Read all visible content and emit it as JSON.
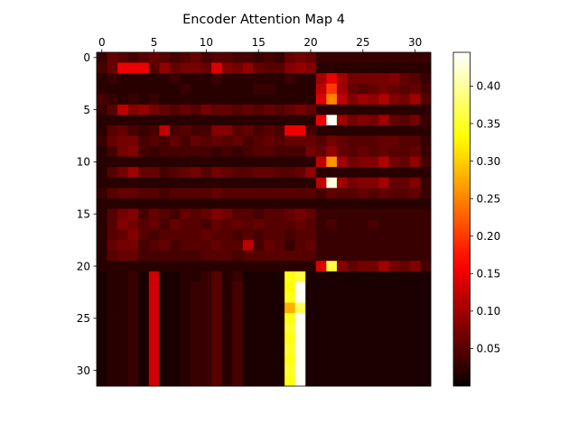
{
  "chart_data": {
    "type": "heatmap",
    "title": "Encoder Attention Map 4",
    "xlabel": "",
    "ylabel": "",
    "rows": 32,
    "cols": 32,
    "x_ticks": [
      0,
      5,
      10,
      15,
      20,
      25,
      30
    ],
    "x_tick_position": "top",
    "y_ticks": [
      0,
      5,
      10,
      15,
      20,
      25,
      30
    ],
    "colormap": "hot",
    "vmin": 0.0,
    "vmax": 0.445,
    "colorbar_ticks": [
      "0.05",
      "0.10",
      "0.15",
      "0.20",
      "0.25",
      "0.30",
      "0.35",
      "0.40"
    ],
    "colorbar_tick_values": [
      0.05,
      0.1,
      0.15,
      0.2,
      0.25,
      0.3,
      0.35,
      0.4
    ],
    "values": [
      [
        0.03,
        0.06,
        0.05,
        0.04,
        0.05,
        0.06,
        0.05,
        0.04,
        0.05,
        0.06,
        0.04,
        0.05,
        0.05,
        0.04,
        0.04,
        0.03,
        0.04,
        0.03,
        0.06,
        0.07,
        0.06,
        0.03,
        0.03,
        0.03,
        0.03,
        0.03,
        0.03,
        0.03,
        0.03,
        0.03,
        0.03,
        0.03
      ],
      [
        0.04,
        0.06,
        0.15,
        0.15,
        0.15,
        0.05,
        0.09,
        0.06,
        0.07,
        0.07,
        0.06,
        0.14,
        0.08,
        0.07,
        0.09,
        0.06,
        0.05,
        0.05,
        0.08,
        0.09,
        0.08,
        0.02,
        0.02,
        0.02,
        0.02,
        0.02,
        0.02,
        0.02,
        0.02,
        0.02,
        0.02,
        0.02
      ],
      [
        0.02,
        0.03,
        0.02,
        0.02,
        0.02,
        0.02,
        0.02,
        0.03,
        0.02,
        0.02,
        0.02,
        0.03,
        0.02,
        0.02,
        0.02,
        0.02,
        0.02,
        0.02,
        0.03,
        0.02,
        0.02,
        0.1,
        0.15,
        0.1,
        0.07,
        0.07,
        0.07,
        0.07,
        0.08,
        0.06,
        0.05,
        0.03
      ],
      [
        0.02,
        0.02,
        0.02,
        0.02,
        0.02,
        0.02,
        0.02,
        0.02,
        0.03,
        0.02,
        0.02,
        0.02,
        0.02,
        0.02,
        0.02,
        0.03,
        0.03,
        0.02,
        0.02,
        0.02,
        0.02,
        0.12,
        0.2,
        0.1,
        0.06,
        0.05,
        0.06,
        0.07,
        0.06,
        0.05,
        0.06,
        0.04
      ],
      [
        0.04,
        0.03,
        0.02,
        0.03,
        0.02,
        0.03,
        0.02,
        0.02,
        0.02,
        0.02,
        0.02,
        0.02,
        0.02,
        0.02,
        0.02,
        0.02,
        0.02,
        0.02,
        0.02,
        0.02,
        0.02,
        0.14,
        0.25,
        0.12,
        0.08,
        0.1,
        0.09,
        0.11,
        0.08,
        0.07,
        0.1,
        0.05
      ],
      [
        0.03,
        0.05,
        0.12,
        0.08,
        0.09,
        0.07,
        0.06,
        0.05,
        0.06,
        0.05,
        0.07,
        0.06,
        0.06,
        0.05,
        0.06,
        0.05,
        0.06,
        0.05,
        0.06,
        0.07,
        0.06,
        0.02,
        0.02,
        0.02,
        0.02,
        0.02,
        0.02,
        0.02,
        0.02,
        0.02,
        0.02,
        0.02
      ],
      [
        0.02,
        0.02,
        0.02,
        0.02,
        0.02,
        0.02,
        0.02,
        0.02,
        0.02,
        0.02,
        0.02,
        0.02,
        0.02,
        0.02,
        0.02,
        0.02,
        0.02,
        0.02,
        0.02,
        0.02,
        0.02,
        0.15,
        0.44,
        0.1,
        0.07,
        0.08,
        0.07,
        0.1,
        0.06,
        0.05,
        0.07,
        0.03
      ],
      [
        0.02,
        0.05,
        0.06,
        0.04,
        0.03,
        0.04,
        0.12,
        0.04,
        0.05,
        0.04,
        0.04,
        0.08,
        0.08,
        0.05,
        0.06,
        0.04,
        0.05,
        0.04,
        0.15,
        0.15,
        0.04,
        0.02,
        0.02,
        0.02,
        0.02,
        0.02,
        0.02,
        0.02,
        0.02,
        0.02,
        0.02,
        0.02
      ],
      [
        0.03,
        0.06,
        0.07,
        0.07,
        0.04,
        0.05,
        0.04,
        0.06,
        0.04,
        0.06,
        0.05,
        0.06,
        0.05,
        0.06,
        0.04,
        0.05,
        0.06,
        0.05,
        0.06,
        0.06,
        0.06,
        0.05,
        0.07,
        0.06,
        0.05,
        0.05,
        0.05,
        0.06,
        0.06,
        0.05,
        0.05,
        0.03
      ],
      [
        0.02,
        0.04,
        0.07,
        0.08,
        0.04,
        0.03,
        0.04,
        0.04,
        0.04,
        0.04,
        0.04,
        0.03,
        0.04,
        0.03,
        0.04,
        0.05,
        0.05,
        0.04,
        0.04,
        0.04,
        0.07,
        0.06,
        0.09,
        0.06,
        0.05,
        0.06,
        0.05,
        0.06,
        0.05,
        0.05,
        0.06,
        0.03
      ],
      [
        0.02,
        0.02,
        0.02,
        0.02,
        0.02,
        0.02,
        0.02,
        0.02,
        0.02,
        0.02,
        0.02,
        0.02,
        0.02,
        0.02,
        0.02,
        0.02,
        0.02,
        0.02,
        0.02,
        0.02,
        0.02,
        0.12,
        0.26,
        0.1,
        0.07,
        0.08,
        0.08,
        0.11,
        0.07,
        0.06,
        0.09,
        0.04
      ],
      [
        0.02,
        0.05,
        0.07,
        0.1,
        0.06,
        0.06,
        0.04,
        0.05,
        0.06,
        0.07,
        0.05,
        0.07,
        0.06,
        0.05,
        0.05,
        0.06,
        0.06,
        0.05,
        0.05,
        0.06,
        0.09,
        0.02,
        0.02,
        0.02,
        0.02,
        0.02,
        0.02,
        0.02,
        0.02,
        0.02,
        0.02,
        0.02
      ],
      [
        0.02,
        0.02,
        0.02,
        0.02,
        0.02,
        0.02,
        0.02,
        0.02,
        0.02,
        0.02,
        0.02,
        0.02,
        0.02,
        0.02,
        0.02,
        0.02,
        0.02,
        0.02,
        0.02,
        0.02,
        0.02,
        0.12,
        0.43,
        0.1,
        0.07,
        0.08,
        0.08,
        0.1,
        0.06,
        0.06,
        0.08,
        0.03
      ],
      [
        0.03,
        0.05,
        0.06,
        0.06,
        0.05,
        0.05,
        0.04,
        0.05,
        0.05,
        0.05,
        0.05,
        0.06,
        0.05,
        0.05,
        0.05,
        0.05,
        0.05,
        0.05,
        0.05,
        0.05,
        0.05,
        0.04,
        0.06,
        0.05,
        0.05,
        0.06,
        0.05,
        0.06,
        0.05,
        0.05,
        0.06,
        0.03
      ],
      [
        0.02,
        0.02,
        0.02,
        0.02,
        0.02,
        0.02,
        0.02,
        0.02,
        0.02,
        0.02,
        0.02,
        0.02,
        0.02,
        0.02,
        0.02,
        0.02,
        0.02,
        0.02,
        0.02,
        0.02,
        0.02,
        0.02,
        0.02,
        0.02,
        0.02,
        0.02,
        0.02,
        0.02,
        0.02,
        0.02,
        0.02,
        0.02
      ],
      [
        0.02,
        0.05,
        0.07,
        0.08,
        0.04,
        0.06,
        0.05,
        0.04,
        0.06,
        0.05,
        0.06,
        0.08,
        0.07,
        0.05,
        0.05,
        0.04,
        0.05,
        0.05,
        0.06,
        0.07,
        0.06,
        0.03,
        0.03,
        0.03,
        0.03,
        0.03,
        0.03,
        0.03,
        0.03,
        0.03,
        0.03,
        0.03
      ],
      [
        0.02,
        0.05,
        0.08,
        0.07,
        0.05,
        0.06,
        0.04,
        0.06,
        0.05,
        0.05,
        0.04,
        0.06,
        0.05,
        0.06,
        0.05,
        0.06,
        0.05,
        0.05,
        0.05,
        0.06,
        0.05,
        0.03,
        0.04,
        0.03,
        0.03,
        0.03,
        0.04,
        0.03,
        0.03,
        0.03,
        0.03,
        0.03
      ],
      [
        0.02,
        0.05,
        0.06,
        0.08,
        0.05,
        0.04,
        0.05,
        0.05,
        0.05,
        0.05,
        0.06,
        0.05,
        0.05,
        0.04,
        0.05,
        0.04,
        0.05,
        0.05,
        0.04,
        0.05,
        0.05,
        0.03,
        0.03,
        0.03,
        0.03,
        0.03,
        0.03,
        0.03,
        0.03,
        0.03,
        0.03,
        0.03
      ],
      [
        0.02,
        0.06,
        0.07,
        0.07,
        0.04,
        0.05,
        0.06,
        0.04,
        0.05,
        0.05,
        0.05,
        0.06,
        0.05,
        0.05,
        0.12,
        0.04,
        0.06,
        0.05,
        0.03,
        0.05,
        0.06,
        0.03,
        0.03,
        0.03,
        0.03,
        0.03,
        0.03,
        0.03,
        0.03,
        0.03,
        0.03,
        0.03
      ],
      [
        0.02,
        0.05,
        0.06,
        0.06,
        0.04,
        0.04,
        0.04,
        0.04,
        0.04,
        0.04,
        0.05,
        0.05,
        0.05,
        0.04,
        0.05,
        0.05,
        0.05,
        0.05,
        0.05,
        0.05,
        0.05,
        0.03,
        0.03,
        0.03,
        0.03,
        0.03,
        0.03,
        0.03,
        0.03,
        0.03,
        0.03,
        0.03
      ],
      [
        0.02,
        0.02,
        0.02,
        0.02,
        0.02,
        0.02,
        0.02,
        0.02,
        0.02,
        0.02,
        0.02,
        0.02,
        0.02,
        0.02,
        0.02,
        0.02,
        0.02,
        0.02,
        0.02,
        0.02,
        0.02,
        0.14,
        0.36,
        0.08,
        0.06,
        0.07,
        0.07,
        0.1,
        0.07,
        0.06,
        0.08,
        0.04
      ],
      [
        0.01,
        0.02,
        0.02,
        0.03,
        0.01,
        0.13,
        0.01,
        0.01,
        0.02,
        0.02,
        0.03,
        0.05,
        0.02,
        0.03,
        0.01,
        0.01,
        0.01,
        0.01,
        0.34,
        0.36,
        0.01,
        0.01,
        0.01,
        0.01,
        0.01,
        0.01,
        0.01,
        0.01,
        0.01,
        0.01,
        0.01,
        0.01
      ],
      [
        0.01,
        0.02,
        0.02,
        0.03,
        0.01,
        0.13,
        0.01,
        0.01,
        0.02,
        0.03,
        0.03,
        0.05,
        0.02,
        0.04,
        0.01,
        0.01,
        0.01,
        0.01,
        0.33,
        0.44,
        0.01,
        0.01,
        0.01,
        0.01,
        0.01,
        0.01,
        0.01,
        0.01,
        0.01,
        0.01,
        0.01,
        0.01
      ],
      [
        0.01,
        0.02,
        0.02,
        0.03,
        0.01,
        0.13,
        0.01,
        0.01,
        0.02,
        0.03,
        0.03,
        0.05,
        0.02,
        0.04,
        0.01,
        0.01,
        0.01,
        0.01,
        0.34,
        0.44,
        0.01,
        0.01,
        0.01,
        0.01,
        0.01,
        0.01,
        0.01,
        0.01,
        0.01,
        0.01,
        0.01,
        0.01
      ],
      [
        0.01,
        0.02,
        0.02,
        0.03,
        0.01,
        0.13,
        0.01,
        0.01,
        0.02,
        0.03,
        0.03,
        0.05,
        0.02,
        0.04,
        0.01,
        0.01,
        0.01,
        0.01,
        0.28,
        0.37,
        0.01,
        0.01,
        0.01,
        0.01,
        0.01,
        0.01,
        0.01,
        0.01,
        0.01,
        0.01,
        0.01,
        0.01
      ],
      [
        0.01,
        0.02,
        0.02,
        0.03,
        0.01,
        0.13,
        0.01,
        0.01,
        0.02,
        0.03,
        0.03,
        0.05,
        0.02,
        0.04,
        0.01,
        0.01,
        0.01,
        0.01,
        0.34,
        0.44,
        0.01,
        0.01,
        0.01,
        0.01,
        0.01,
        0.01,
        0.01,
        0.01,
        0.01,
        0.01,
        0.01,
        0.01
      ],
      [
        0.01,
        0.02,
        0.02,
        0.03,
        0.01,
        0.13,
        0.01,
        0.01,
        0.02,
        0.03,
        0.03,
        0.05,
        0.02,
        0.04,
        0.01,
        0.01,
        0.01,
        0.01,
        0.35,
        0.44,
        0.01,
        0.01,
        0.01,
        0.01,
        0.01,
        0.01,
        0.01,
        0.01,
        0.01,
        0.01,
        0.01,
        0.01
      ],
      [
        0.01,
        0.02,
        0.02,
        0.03,
        0.01,
        0.13,
        0.01,
        0.01,
        0.02,
        0.03,
        0.03,
        0.05,
        0.02,
        0.04,
        0.01,
        0.01,
        0.01,
        0.01,
        0.34,
        0.44,
        0.01,
        0.01,
        0.01,
        0.01,
        0.01,
        0.01,
        0.01,
        0.01,
        0.01,
        0.01,
        0.01,
        0.01
      ],
      [
        0.01,
        0.02,
        0.02,
        0.03,
        0.01,
        0.13,
        0.01,
        0.01,
        0.02,
        0.03,
        0.03,
        0.05,
        0.02,
        0.04,
        0.01,
        0.01,
        0.01,
        0.01,
        0.35,
        0.44,
        0.01,
        0.01,
        0.01,
        0.01,
        0.01,
        0.01,
        0.01,
        0.01,
        0.01,
        0.01,
        0.01,
        0.01
      ],
      [
        0.01,
        0.02,
        0.02,
        0.03,
        0.01,
        0.13,
        0.01,
        0.01,
        0.02,
        0.03,
        0.03,
        0.05,
        0.02,
        0.04,
        0.01,
        0.01,
        0.01,
        0.01,
        0.34,
        0.44,
        0.01,
        0.01,
        0.01,
        0.01,
        0.01,
        0.01,
        0.01,
        0.01,
        0.01,
        0.01,
        0.01,
        0.01
      ],
      [
        0.01,
        0.02,
        0.02,
        0.03,
        0.01,
        0.13,
        0.01,
        0.01,
        0.02,
        0.03,
        0.03,
        0.05,
        0.02,
        0.04,
        0.01,
        0.01,
        0.01,
        0.01,
        0.35,
        0.44,
        0.01,
        0.01,
        0.01,
        0.01,
        0.01,
        0.01,
        0.01,
        0.01,
        0.01,
        0.01,
        0.01,
        0.01
      ],
      [
        0.01,
        0.02,
        0.02,
        0.03,
        0.01,
        0.13,
        0.01,
        0.01,
        0.02,
        0.03,
        0.03,
        0.05,
        0.02,
        0.04,
        0.01,
        0.01,
        0.01,
        0.01,
        0.34,
        0.44,
        0.01,
        0.01,
        0.01,
        0.01,
        0.01,
        0.01,
        0.01,
        0.01,
        0.01,
        0.01,
        0.01,
        0.01
      ]
    ]
  }
}
